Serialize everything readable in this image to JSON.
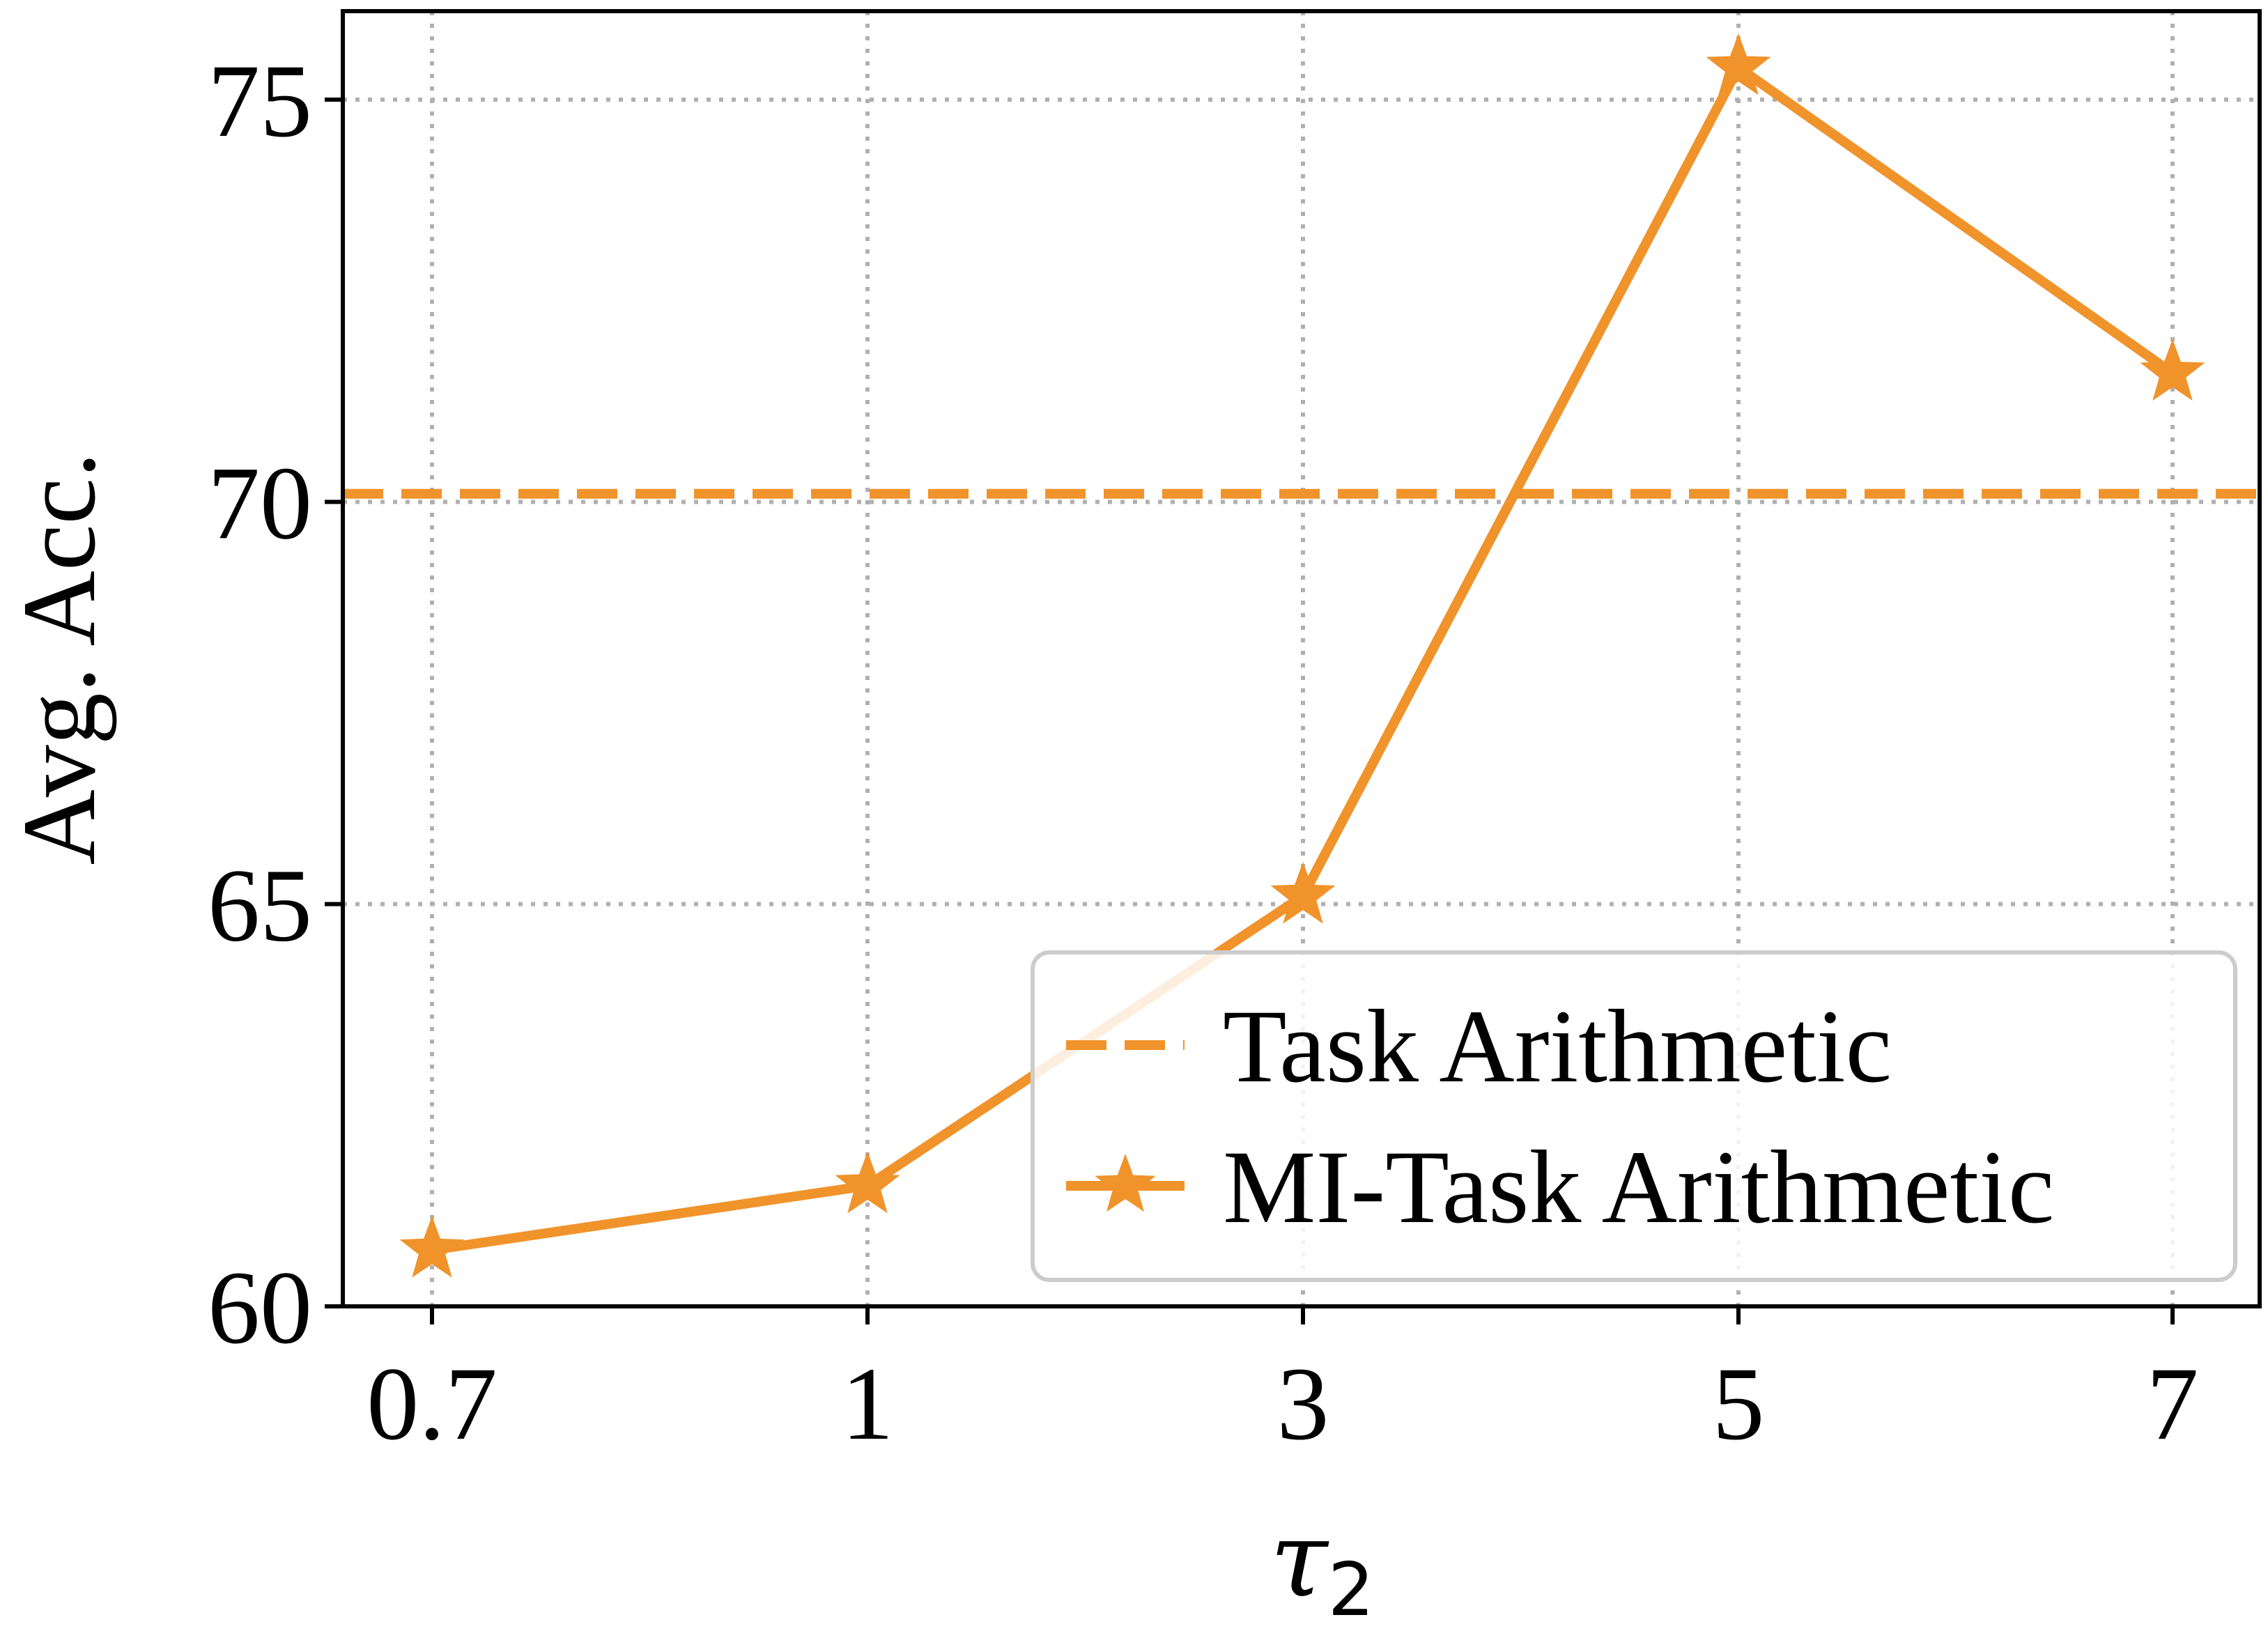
{
  "chart_data": {
    "type": "line",
    "title": "",
    "xlabel": "τ",
    "xlabel_subscript": "2",
    "ylabel": "Avg. Acc.",
    "categories": [
      "0.7",
      "1",
      "3",
      "5",
      "7"
    ],
    "yticks": [
      "60",
      "65",
      "70",
      "75"
    ],
    "ylim": [
      60,
      76.1
    ],
    "grid": true,
    "legend_position": "lower-right",
    "series": [
      {
        "name": "MI-Task Arithmetic",
        "style": "solid-line-star-markers",
        "color": "#f0932b",
        "values": [
          60.7,
          61.5,
          65.1,
          75.4,
          71.6
        ]
      }
    ],
    "reference_lines": [
      {
        "name": "Task Arithmetic",
        "style": "dashed",
        "color": "#f0932b",
        "value": 70.1
      }
    ]
  }
}
